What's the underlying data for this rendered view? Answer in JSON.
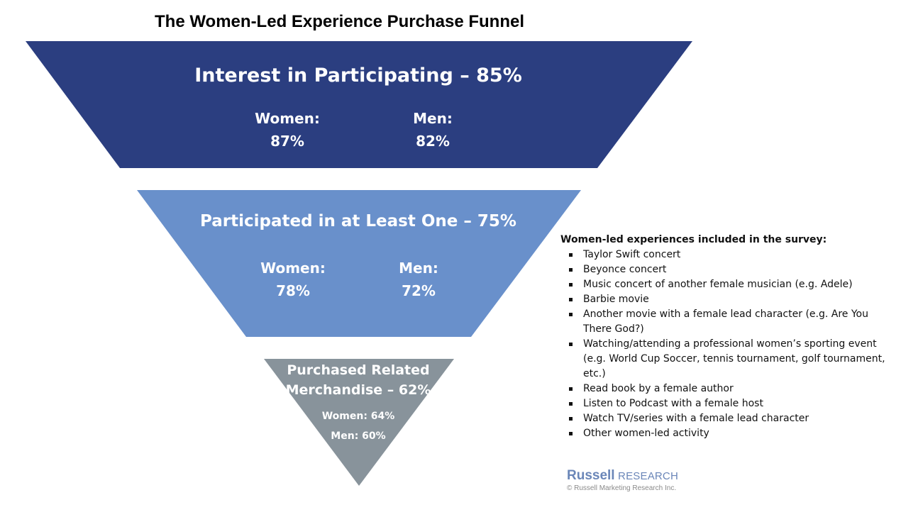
{
  "title": "The Women-Led Experience Purchase Funnel",
  "colors": {
    "stage1": "#2b3e80",
    "stage2": "#6990cb",
    "stage3": "#88939b",
    "text_on_stage": "#ffffff",
    "brand": "#6a86b8"
  },
  "stages": [
    {
      "heading": "Interest in Participating – 85%",
      "women_label": "Women:",
      "women_value": "87%",
      "men_label": "Men:",
      "men_value": "82%"
    },
    {
      "heading": "Participated in at Least One – 75%",
      "women_label": "Women:",
      "women_value": "78%",
      "men_label": "Men:",
      "men_value": "72%"
    },
    {
      "heading_line1": "Purchased Related",
      "heading_line2": "Merchandise – 62%",
      "women": "Women: 64%",
      "men": "Men: 60%"
    }
  ],
  "experiences": {
    "heading": "Women-led experiences included in the survey:",
    "items": [
      "Taylor Swift concert",
      "Beyonce concert",
      "Music concert of another female musician (e.g. Adele)",
      "Barbie movie",
      "Another movie with a female lead character (e.g. Are You There God?)",
      "Watching/attending a professional women’s sporting event (e.g. World Cup Soccer, tennis tournament, golf tournament, etc.)",
      "Read book by a female author",
      "Listen to Podcast with a female host",
      "Watch TV/series with a female lead character",
      "Other women-led activity"
    ]
  },
  "brand": {
    "name": "Russell",
    "sub": "RESEARCH",
    "copyright": "© Russell Marketing Research Inc."
  }
}
